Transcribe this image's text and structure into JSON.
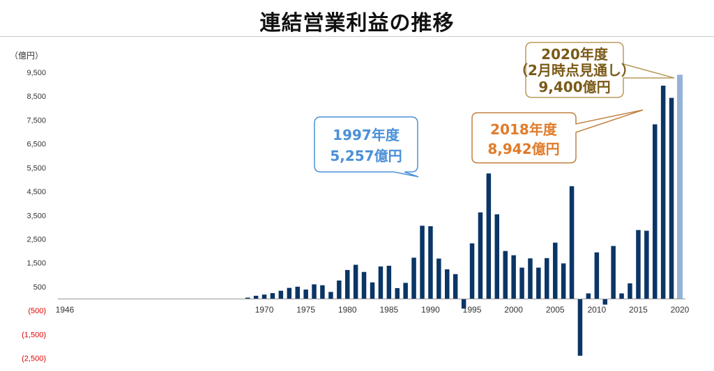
{
  "title": "連結営業利益の推移",
  "chart_data": {
    "type": "bar",
    "ylabel": "（億円）",
    "ylim": [
      -3000,
      10000
    ],
    "grid": false,
    "yticks": [
      {
        "label": "9,500",
        "value": 9500
      },
      {
        "label": "8,500",
        "value": 8500
      },
      {
        "label": "7,500",
        "value": 7500
      },
      {
        "label": "6,500",
        "value": 6500
      },
      {
        "label": "5,500",
        "value": 5500
      },
      {
        "label": "4,500",
        "value": 4500
      },
      {
        "label": "3,500",
        "value": 3500
      },
      {
        "label": "2,500",
        "value": 2500
      },
      {
        "label": "1,500",
        "value": 1500
      },
      {
        "label": "500",
        "value": 500
      },
      {
        "label": "(500)",
        "value": -500
      },
      {
        "label": "(1,500)",
        "value": -1500
      },
      {
        "label": "(2,500)",
        "value": -2500
      }
    ],
    "xticks": [
      "1946",
      "1970",
      "1975",
      "1980",
      "1985",
      "1990",
      "1995",
      "2000",
      "2005",
      "2010",
      "2015",
      "2020"
    ],
    "categories": [
      1946,
      1947,
      1948,
      1949,
      1950,
      1951,
      1952,
      1953,
      1954,
      1955,
      1956,
      1957,
      1958,
      1959,
      1960,
      1961,
      1962,
      1963,
      1964,
      1965,
      1966,
      1967,
      1968,
      1969,
      1970,
      1971,
      1972,
      1973,
      1974,
      1975,
      1976,
      1977,
      1978,
      1979,
      1980,
      1981,
      1982,
      1983,
      1984,
      1985,
      1986,
      1987,
      1988,
      1989,
      1990,
      1991,
      1992,
      1993,
      1994,
      1995,
      1996,
      1997,
      1998,
      1999,
      2000,
      2001,
      2002,
      2003,
      2004,
      2005,
      2006,
      2007,
      2008,
      2009,
      2010,
      2011,
      2012,
      2013,
      2014,
      2015,
      2016,
      2017,
      2018,
      2019,
      2020
    ],
    "values": [
      0,
      0,
      0,
      0,
      0,
      0,
      0,
      0,
      0,
      0,
      0,
      0,
      0,
      0,
      0,
      0,
      0,
      0,
      0,
      0,
      0,
      0,
      40,
      120,
      170,
      230,
      330,
      450,
      500,
      380,
      600,
      560,
      280,
      760,
      1200,
      1420,
      1120,
      680,
      1350,
      1380,
      440,
      660,
      1720,
      3060,
      3040,
      1680,
      1230,
      1030,
      -420,
      2320,
      3620,
      5257,
      3540,
      2000,
      1820,
      1300,
      1690,
      1300,
      1700,
      2350,
      1480,
      4720,
      -2400,
      220,
      1940,
      -250,
      2210,
      220,
      640,
      2880,
      2850,
      7320,
      8942,
      8430,
      9400
    ],
    "series_colors": {
      "actual": "#0a3566",
      "forecast": "#95b3d7"
    },
    "forecast_category": 2020
  },
  "annotations": [
    {
      "name": "annotation-1997",
      "lines": [
        "1997年度",
        "5,257億円"
      ],
      "color": "#4a90d9",
      "border": "#4a90d9"
    },
    {
      "name": "annotation-2018",
      "lines": [
        "2018年度",
        "8,942億円"
      ],
      "color": "#e07b2a",
      "border": "#c08040"
    },
    {
      "name": "annotation-2020",
      "lines": [
        "2020年度",
        "（2月時点見通し）",
        "9,400億円"
      ],
      "color": "#7a5a18",
      "border": "#b89a5a"
    }
  ]
}
